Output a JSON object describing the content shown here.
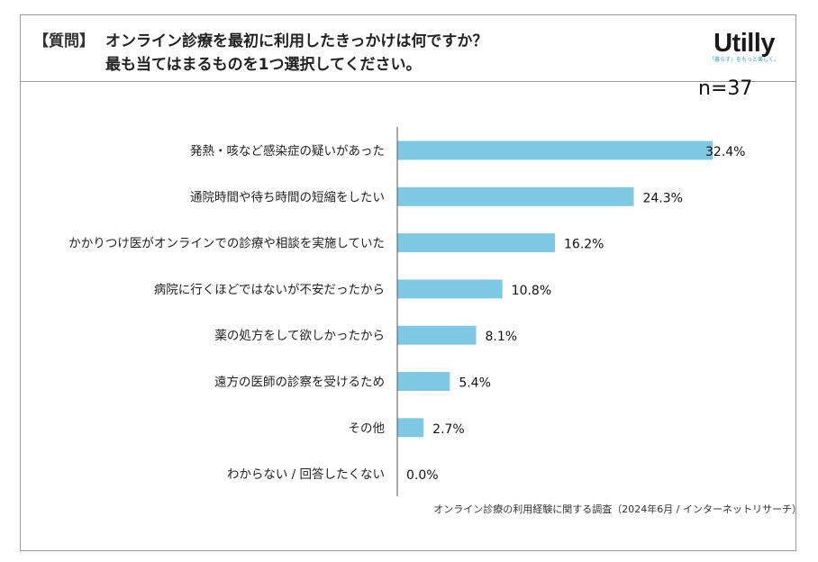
{
  "question": {
    "tag": "【質問】",
    "line1": "オンライン診療を最初に利用したきっかけは何ですか？",
    "line2": "最も当てはまるものを1つ選択してください。"
  },
  "logo": {
    "name": "Utilly",
    "tagline": "「暮らす」をもっと楽しく。"
  },
  "sample_size": "n=37",
  "source": "オンライン診療の利用経験に関する調査（2024年6月 / インターネットリサーチ）",
  "colors": {
    "bar": "#7ec8e3",
    "axis": "#555555"
  },
  "chart_data": {
    "type": "bar",
    "orientation": "horizontal",
    "categories": [
      "発熱・咳など感染症の疑いがあった",
      "通院時間や待ち時間の短縮をしたい",
      "かかりつけ医がオンラインでの診療や相談を実施していた",
      "病院に行くほどではないが不安だったから",
      "薬の処方をして欲しかったから",
      "遠方の医師の診察を受けるため",
      "その他",
      "わからない / 回答したくない"
    ],
    "values": [
      32.4,
      24.3,
      16.2,
      10.8,
      8.1,
      5.4,
      2.7,
      0.0
    ],
    "value_labels": [
      "32.4%",
      "24.3%",
      "16.2%",
      "10.8%",
      "8.1%",
      "5.4%",
      "2.7%",
      "0.0%"
    ],
    "xlim": [
      0,
      32.4
    ],
    "unit": "%"
  }
}
